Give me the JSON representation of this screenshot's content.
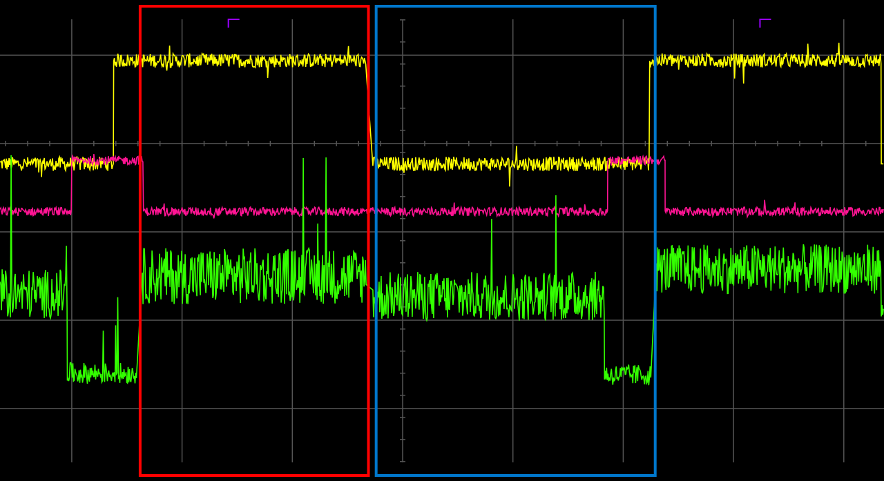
{
  "chart_data": {
    "type": "line",
    "title": "",
    "xlabel": "",
    "ylabel": "",
    "grid": true,
    "xlim": [
      -3.65,
      4.36
    ],
    "ylim": [
      -3.8,
      1.63
    ],
    "colors": {
      "background": "#000000",
      "grid": "#555555",
      "yellow": "#ffff00",
      "pink": "#ff1493",
      "green": "#33ff00",
      "marker": "#9900ff",
      "red_box": "#ff0000",
      "blue_box": "#0077cc"
    },
    "series": [
      {
        "color_key": "yellow",
        "segments": [
          {
            "x": [
              -3.65,
              -2.62
            ],
            "level": -0.23,
            "noise": 0.08
          },
          {
            "x": [
              -2.62,
              -0.33
            ],
            "level": 0.94,
            "noise": 0.08
          },
          {
            "x": [
              -0.27,
              2.24
            ],
            "level": -0.23,
            "noise": 0.08
          },
          {
            "x": [
              2.24,
              4.34
            ],
            "level": 0.94,
            "noise": 0.08
          },
          {
            "x": [
              4.34,
              4.36
            ],
            "level": -0.23,
            "noise": 0.0
          }
        ]
      },
      {
        "color_key": "pink",
        "segments": [
          {
            "x": [
              -3.65,
              -3.0
            ],
            "level": -0.77,
            "noise": 0.05
          },
          {
            "x": [
              -3.0,
              -2.35
            ],
            "level": -0.19,
            "noise": 0.05
          },
          {
            "x": [
              -2.35,
              1.86
            ],
            "level": -0.77,
            "noise": 0.05
          },
          {
            "x": [
              1.86,
              2.38
            ],
            "level": -0.19,
            "noise": 0.05
          },
          {
            "x": [
              2.38,
              4.36
            ],
            "level": -0.77,
            "noise": 0.05
          }
        ]
      },
      {
        "color_key": "green",
        "segments": [
          {
            "x": [
              -3.65,
              -3.04
            ],
            "level": -1.7,
            "noise": 0.28
          },
          {
            "x": [
              -3.04,
              -2.41
            ],
            "level": -2.6,
            "noise": 0.12
          },
          {
            "x": [
              -2.36,
              -0.33
            ],
            "level": -1.5,
            "noise": 0.32
          },
          {
            "x": [
              -0.27,
              1.83
            ],
            "level": -1.73,
            "noise": 0.28
          },
          {
            "x": [
              1.83,
              2.25
            ],
            "level": -2.62,
            "noise": 0.12
          },
          {
            "x": [
              2.3,
              4.34
            ],
            "level": -1.42,
            "noise": 0.28
          },
          {
            "x": [
              4.34,
              4.36
            ],
            "level": -1.9,
            "noise": 0.1
          }
        ]
      }
    ],
    "markers": [
      {
        "color_key": "marker",
        "x": -1.58
      },
      {
        "color_key": "marker",
        "x": 3.24
      }
    ],
    "highlight_boxes": [
      {
        "color_key": "red_box",
        "x": [
          -2.38,
          -0.31
        ]
      },
      {
        "color_key": "blue_box",
        "x": [
          -0.24,
          2.29
        ]
      }
    ]
  }
}
